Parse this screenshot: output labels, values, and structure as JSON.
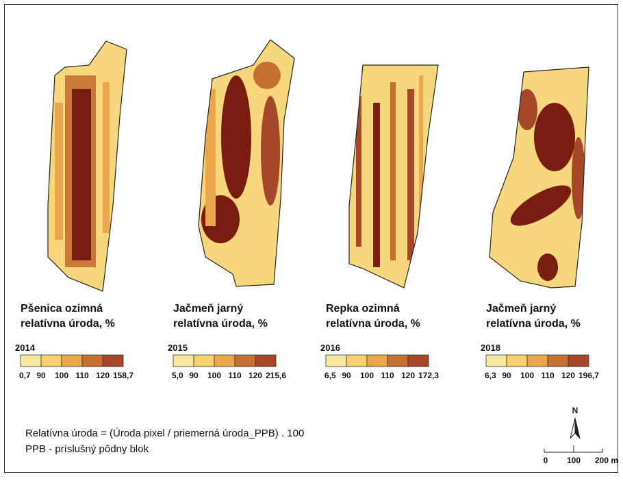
{
  "panels": [
    {
      "title": [
        "Pšenica ozimná",
        "relatívna úroda, %"
      ],
      "year": "2014",
      "legend": [
        "0,7",
        "90",
        "100",
        "110",
        "120",
        "158,7"
      ]
    },
    {
      "title": [
        "Jačmeň jarný",
        "relatívna úroda, %"
      ],
      "year": "2015",
      "legend": [
        "5,0",
        "90",
        "100",
        "110",
        "120",
        "215,6"
      ]
    },
    {
      "title": [
        "Repka ozimná",
        "relatívna úroda, %"
      ],
      "year": "2016",
      "legend": [
        "6,5",
        "90",
        "100",
        "110",
        "120",
        "172,3"
      ]
    },
    {
      "title": [
        "Jačmeň jarný",
        "relatívna úroda, %"
      ],
      "year": "2018",
      "legend": [
        "6,3",
        "90",
        "100",
        "110",
        "120",
        "196,7"
      ]
    }
  ],
  "legend_colors": [
    "#f7e9a0",
    "#f6cf6c",
    "#eaa64a",
    "#c56f33",
    "#a6472a"
  ],
  "note": [
    "Relatívna úroda = (Úroda pixel / priemerná úroda_PPB) . 100",
    "PPB - príslušný pôdny blok"
  ],
  "north": "N",
  "scale": [
    "0",
    "100",
    "200 m"
  ]
}
